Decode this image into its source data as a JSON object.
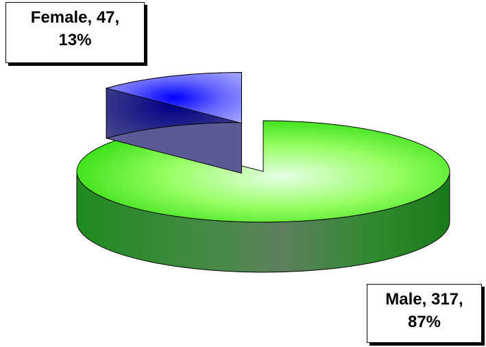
{
  "chart_data": {
    "type": "pie",
    "style": "3d-exploded",
    "title": "",
    "slices": [
      {
        "name": "Male",
        "value": 317,
        "percent": 87,
        "color_top": "#66ff33",
        "color_highlight": "#e6ffe6",
        "color_side": "#1f8a1f",
        "label": {
          "line1": "Male, 317,",
          "line2": "87%"
        },
        "label_position": "bottom-right"
      },
      {
        "name": "Female",
        "value": 47,
        "percent": 13,
        "color_top": "#6666ff",
        "color_highlight": "#ffffff",
        "color_side": "#22225a",
        "label": {
          "line1": "Female, 47,",
          "line2": "13%"
        },
        "label_position": "top-left",
        "exploded": true
      }
    ],
    "legend": "none"
  }
}
